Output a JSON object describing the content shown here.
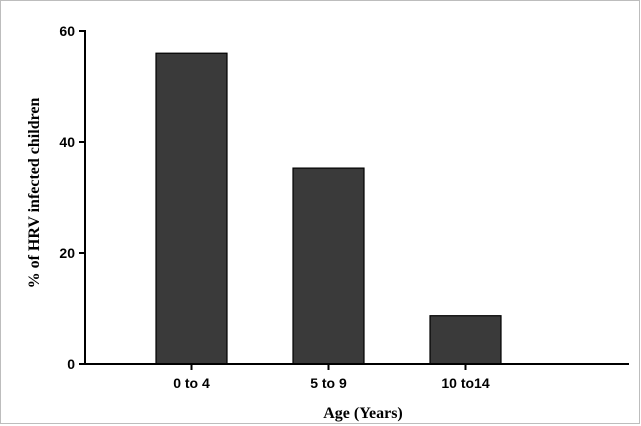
{
  "chart_data": {
    "type": "bar",
    "categories": [
      "0 to 4",
      "5 to 9",
      "10 to14"
    ],
    "values": [
      56,
      35.3,
      8.7
    ],
    "xlabel": "Age (Years)",
    "ylabel": "% of HRV infected children",
    "ylim": [
      0,
      60
    ],
    "yticks": [
      0,
      20,
      40,
      60
    ],
    "grid": false,
    "legend": "none",
    "bar_color": "#3a3a3a",
    "bar_edge_color": "#000000"
  }
}
